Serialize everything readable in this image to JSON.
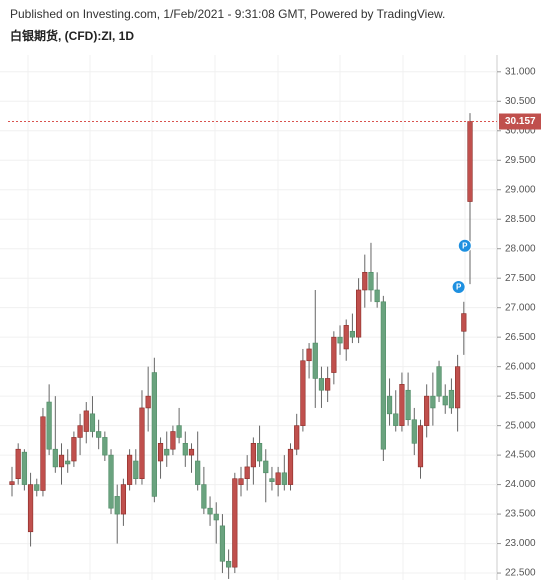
{
  "header": {
    "published": "Published on Investing.com, 1/Feb/2021 - 9:31:08 GMT, Powered by TradingView."
  },
  "chart_data": {
    "type": "candlestick",
    "title": "白银期货, (CFD):ZI, 1D",
    "ylim": [
      22.45,
      31.2
    ],
    "yticks": [
      {
        "value": 22.5,
        "label": "22.500"
      },
      {
        "value": 23,
        "label": "23.000"
      },
      {
        "value": 23.5,
        "label": "23.500"
      },
      {
        "value": 24,
        "label": "24.000"
      },
      {
        "value": 24.5,
        "label": "24.500"
      },
      {
        "value": 25,
        "label": "25.000"
      },
      {
        "value": 25.5,
        "label": "25.500"
      },
      {
        "value": 26,
        "label": "26.000"
      },
      {
        "value": 26.5,
        "label": "26.500"
      },
      {
        "value": 27,
        "label": "27.000"
      },
      {
        "value": 27.5,
        "label": "27.500"
      },
      {
        "value": 28,
        "label": "28.000"
      },
      {
        "value": 28.5,
        "label": "28.500"
      },
      {
        "value": 29,
        "label": "29.000"
      },
      {
        "value": 29.5,
        "label": "29.500"
      },
      {
        "value": 30,
        "label": "30.000"
      },
      {
        "value": 30.5,
        "label": "30.500"
      },
      {
        "value": 31,
        "label": "31.000"
      }
    ],
    "up_color": "#c0504d",
    "down_color": "#6aa37f",
    "open": [
      24.0,
      24.1,
      24.55,
      23.2,
      24.0,
      23.9,
      25.4,
      24.6,
      24.3,
      24.4,
      24.4,
      24.8,
      24.9,
      25.2,
      24.9,
      24.8,
      24.5,
      23.8,
      23.5,
      24.0,
      24.4,
      24.1,
      25.3,
      25.9,
      24.4,
      24.6,
      24.6,
      25.0,
      24.7,
      24.5,
      24.4,
      24.0,
      23.6,
      23.5,
      23.3,
      22.7,
      22.6,
      24.0,
      24.1,
      24.3,
      24.7,
      24.4,
      24.1,
      24.0,
      24.2,
      24.0,
      24.6,
      25.0,
      26.1,
      26.4,
      25.8,
      25.6,
      25.9,
      26.5,
      26.3,
      26.6,
      26.5,
      27.3,
      27.6,
      27.3,
      27.1,
      25.5,
      25.2,
      25.0,
      25.6,
      25.1,
      24.3,
      25.0,
      25.5,
      26.0,
      25.5,
      25.6,
      25.3,
      26.6,
      28.8
    ],
    "high": [
      24.3,
      24.7,
      24.6,
      24.2,
      24.1,
      25.3,
      25.7,
      25.5,
      24.7,
      24.6,
      24.9,
      25.2,
      25.4,
      25.5,
      25.1,
      24.9,
      24.6,
      24.0,
      24.1,
      24.6,
      24.6,
      25.6,
      26.0,
      26.15,
      24.8,
      24.9,
      25.0,
      25.3,
      24.9,
      24.7,
      24.9,
      24.3,
      23.8,
      23.7,
      23.5,
      22.9,
      24.2,
      24.3,
      24.5,
      24.8,
      25.0,
      24.6,
      24.3,
      24.3,
      24.5,
      24.7,
      25.2,
      26.3,
      26.4,
      27.3,
      26.0,
      26.0,
      26.6,
      26.7,
      26.8,
      26.9,
      27.5,
      27.9,
      28.1,
      27.6,
      27.2,
      25.8,
      25.6,
      25.9,
      25.9,
      25.3,
      25.1,
      25.7,
      25.9,
      26.1,
      25.7,
      25.8,
      26.2,
      27.1,
      30.3
    ],
    "low": [
      23.8,
      24.0,
      23.9,
      22.95,
      23.8,
      23.8,
      24.5,
      24.2,
      24.0,
      24.2,
      24.3,
      24.5,
      24.7,
      24.8,
      24.6,
      24.4,
      23.5,
      23.0,
      23.3,
      23.9,
      24.0,
      24.0,
      24.9,
      23.7,
      24.1,
      24.3,
      24.5,
      24.7,
      24.3,
      24.2,
      23.9,
      23.5,
      23.3,
      23.0,
      22.5,
      22.4,
      22.5,
      23.8,
      23.9,
      24.0,
      24.3,
      23.7,
      23.9,
      23.8,
      23.9,
      23.9,
      24.5,
      24.9,
      25.8,
      25.3,
      25.3,
      25.4,
      25.7,
      26.2,
      26.1,
      26.4,
      26.4,
      27.0,
      27.1,
      27.0,
      24.4,
      25.0,
      24.9,
      24.9,
      25.0,
      24.5,
      24.1,
      24.8,
      25.0,
      25.4,
      25.2,
      25.2,
      24.9,
      26.2,
      27.4
    ],
    "close": [
      24.05,
      24.6,
      24.0,
      24.0,
      23.9,
      25.15,
      24.6,
      24.3,
      24.5,
      24.35,
      24.8,
      25.0,
      25.25,
      24.9,
      24.8,
      24.5,
      23.6,
      23.5,
      24.0,
      24.5,
      24.1,
      25.3,
      25.5,
      23.8,
      24.7,
      24.5,
      24.9,
      24.8,
      24.5,
      24.6,
      24.0,
      23.6,
      23.5,
      23.4,
      22.7,
      22.6,
      24.1,
      24.1,
      24.3,
      24.7,
      24.4,
      24.2,
      24.05,
      24.2,
      24.0,
      24.6,
      25.0,
      26.1,
      26.3,
      25.8,
      25.6,
      25.8,
      26.5,
      26.4,
      26.7,
      26.5,
      27.3,
      27.6,
      27.3,
      27.1,
      24.6,
      25.2,
      25.0,
      25.7,
      25.1,
      24.7,
      25.0,
      25.5,
      25.3,
      25.5,
      25.35,
      25.3,
      26.0,
      26.9,
      30.157
    ],
    "markers": [
      {
        "label": "P",
        "value": 27.35
      },
      {
        "label": "P",
        "value": 28.05
      }
    ]
  }
}
